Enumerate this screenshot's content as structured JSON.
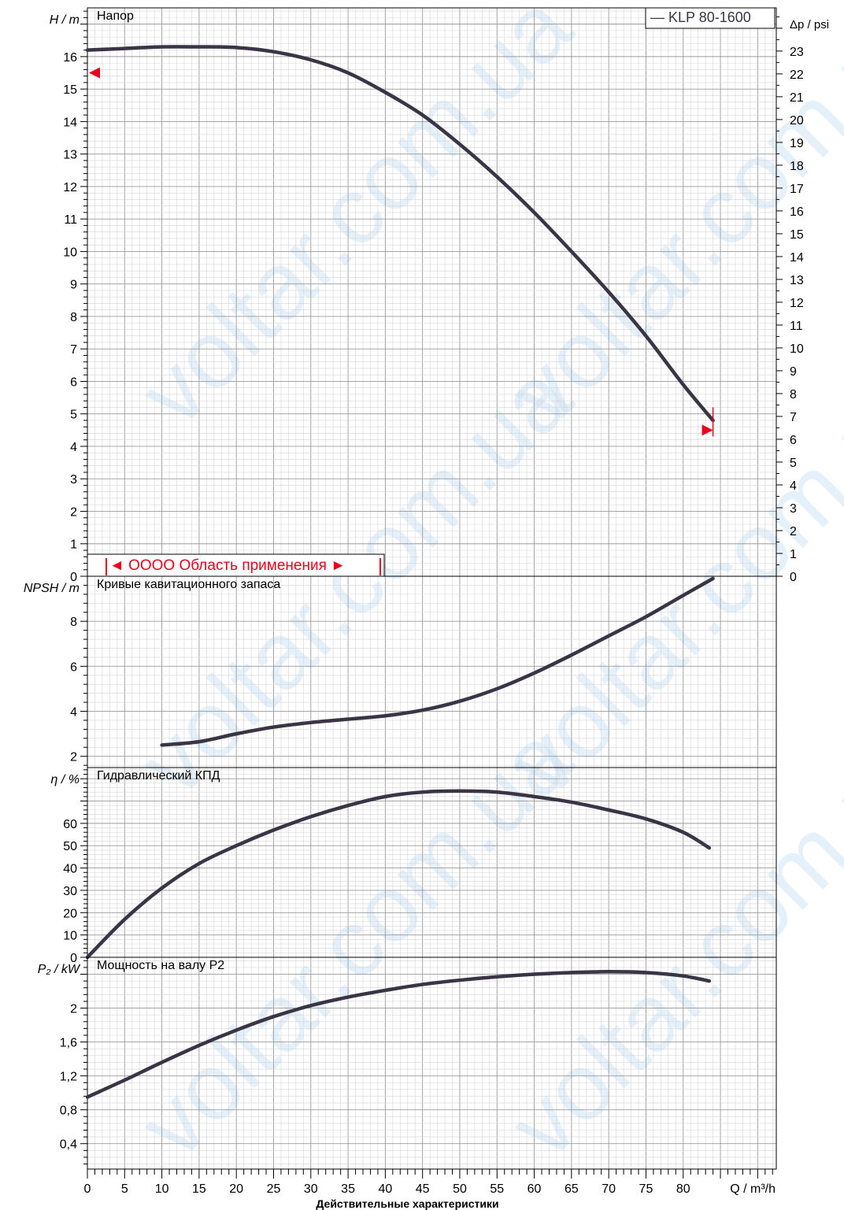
{
  "footer_title": "Действительные характеристики",
  "watermark_text": "voltar.com.ua",
  "colors": {
    "curve": "#3a3447",
    "range": "#e8001c",
    "grid_major": "#9a9a9a",
    "grid_minor": "#d4d4d4",
    "watermark": "#cfe4f6"
  },
  "legend_label": "— KLP 80-1600",
  "application_range_label": "◄ ОООО Область применения ►",
  "x_axis": {
    "label": "Q / m³/h",
    "ticks": [
      "0",
      "5",
      "10",
      "15",
      "20",
      "25",
      "30",
      "35",
      "40",
      "45",
      "50",
      "55",
      "60",
      "65",
      "70",
      "75",
      "80"
    ]
  },
  "chart_data": [
    {
      "type": "line",
      "title": "Напор",
      "ylabel": "H / m",
      "ylim": [
        0,
        17.5
      ],
      "y_ticks": [
        "0",
        "1",
        "2",
        "3",
        "4",
        "5",
        "6",
        "7",
        "8",
        "9",
        "10",
        "11",
        "12",
        "13",
        "14",
        "15",
        "16"
      ],
      "y2label": "Δp / psi",
      "y2_ticks": [
        "0",
        "1",
        "2",
        "3",
        "4",
        "5",
        "6",
        "7",
        "8",
        "9",
        "10",
        "11",
        "12",
        "13",
        "14",
        "15",
        "16",
        "17",
        "18",
        "19",
        "20",
        "21",
        "22",
        "23"
      ],
      "series": [
        {
          "name": "KLP 80-1600",
          "x": [
            0,
            5,
            10,
            15,
            20,
            25,
            30,
            35,
            40,
            45,
            50,
            55,
            60,
            65,
            70,
            75,
            80,
            84
          ],
          "y": [
            16.2,
            16.25,
            16.3,
            16.3,
            16.28,
            16.15,
            15.9,
            15.5,
            14.9,
            14.2,
            13.3,
            12.3,
            11.2,
            10.0,
            8.75,
            7.4,
            5.9,
            4.8
          ]
        }
      ],
      "application_range_markers": {
        "left_x": 0,
        "left_h": 15.5,
        "right_x": 84,
        "right_h": 4.5
      }
    },
    {
      "type": "line",
      "title": "Кривые кавитационного запаса",
      "ylabel": "NPSH / m",
      "ylim": [
        1.5,
        10
      ],
      "y_ticks": [
        "2",
        "4",
        "6",
        "8"
      ],
      "series": [
        {
          "x": [
            10,
            15,
            20,
            25,
            30,
            35,
            40,
            45,
            50,
            55,
            60,
            65,
            70,
            75,
            80,
            84
          ],
          "y": [
            2.5,
            2.65,
            3.0,
            3.3,
            3.5,
            3.65,
            3.8,
            4.05,
            4.45,
            5.0,
            5.7,
            6.5,
            7.35,
            8.2,
            9.15,
            9.9
          ]
        }
      ]
    },
    {
      "type": "line",
      "title": "Гидравлический КПД",
      "ylabel": "η / %",
      "ylim": [
        0,
        85
      ],
      "y_ticks": [
        "0",
        "10",
        "20",
        "30",
        "40",
        "50",
        "60"
      ],
      "series": [
        {
          "x": [
            0,
            5,
            10,
            15,
            20,
            25,
            30,
            35,
            40,
            45,
            50,
            55,
            60,
            65,
            70,
            75,
            80,
            83.5
          ],
          "y": [
            0,
            17,
            31,
            42,
            50,
            57,
            63,
            68,
            72,
            74,
            74.5,
            74,
            72,
            69.5,
            66,
            62,
            56,
            49
          ]
        }
      ]
    },
    {
      "type": "line",
      "title": "Мощность на валу P2",
      "ylabel": "P₂ / kW",
      "ylim": [
        0.1,
        2.6
      ],
      "y_ticks": [
        "0,4",
        "0,8",
        "1,2",
        "1,6",
        "2"
      ],
      "series": [
        {
          "x": [
            0,
            5,
            10,
            15,
            20,
            25,
            30,
            35,
            40,
            45,
            50,
            55,
            60,
            65,
            70,
            75,
            80,
            83.5
          ],
          "y": [
            0.95,
            1.15,
            1.36,
            1.56,
            1.74,
            1.9,
            2.03,
            2.13,
            2.21,
            2.28,
            2.33,
            2.37,
            2.4,
            2.42,
            2.43,
            2.42,
            2.38,
            2.32
          ]
        }
      ]
    }
  ]
}
